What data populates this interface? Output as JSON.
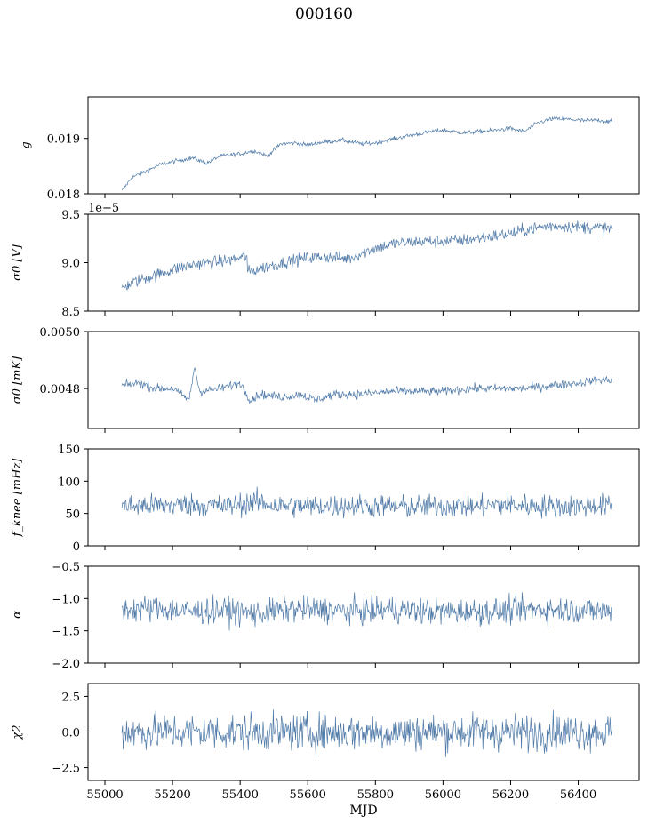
{
  "title": "000160",
  "chart_data": [
    {
      "type": "line",
      "ylabel": "g",
      "ylim": [
        0.018,
        0.01975
      ],
      "yticks": [
        0.018,
        0.019
      ],
      "ytick_labels": [
        "0.018",
        "0.019"
      ],
      "offset_text": "",
      "xlim": [
        54950,
        56580
      ],
      "color": "#4e79a7",
      "noise": 3e-05,
      "points": [
        [
          55050,
          0.01805
        ],
        [
          55080,
          0.0183
        ],
        [
          55120,
          0.0184
        ],
        [
          55160,
          0.01852
        ],
        [
          55200,
          0.01858
        ],
        [
          55260,
          0.01865
        ],
        [
          55300,
          0.01855
        ],
        [
          55340,
          0.01868
        ],
        [
          55400,
          0.01872
        ],
        [
          55440,
          0.01878
        ],
        [
          55480,
          0.01868
        ],
        [
          55520,
          0.0189
        ],
        [
          55560,
          0.01892
        ],
        [
          55600,
          0.01888
        ],
        [
          55640,
          0.01893
        ],
        [
          55700,
          0.01897
        ],
        [
          55760,
          0.0189
        ],
        [
          55800,
          0.01892
        ],
        [
          55860,
          0.019
        ],
        [
          55900,
          0.01905
        ],
        [
          55960,
          0.01912
        ],
        [
          56000,
          0.01915
        ],
        [
          56060,
          0.0191
        ],
        [
          56100,
          0.01912
        ],
        [
          56160,
          0.01915
        ],
        [
          56200,
          0.01918
        ],
        [
          56240,
          0.01912
        ],
        [
          56280,
          0.01928
        ],
        [
          56320,
          0.01935
        ],
        [
          56360,
          0.01935
        ],
        [
          56420,
          0.01932
        ],
        [
          56460,
          0.01933
        ],
        [
          56500,
          0.0193
        ]
      ]
    },
    {
      "type": "line",
      "ylabel": "σ0 [V]",
      "ylim": [
        8.5,
        9.5
      ],
      "yticks": [
        8.5,
        9.0,
        9.5
      ],
      "ytick_labels": [
        "8.5",
        "9.0",
        "9.5"
      ],
      "offset_text": "1e−5",
      "xlim": [
        54950,
        56580
      ],
      "color": "#4e79a7",
      "noise": 0.05,
      "points": [
        [
          55050,
          8.74
        ],
        [
          55100,
          8.82
        ],
        [
          55160,
          8.88
        ],
        [
          55220,
          8.95
        ],
        [
          55280,
          8.99
        ],
        [
          55340,
          9.01
        ],
        [
          55400,
          9.05
        ],
        [
          55420,
          9.07
        ],
        [
          55421,
          8.9
        ],
        [
          55480,
          8.96
        ],
        [
          55540,
          9.01
        ],
        [
          55600,
          9.05
        ],
        [
          55660,
          9.06
        ],
        [
          55720,
          9.04
        ],
        [
          55760,
          9.1
        ],
        [
          55800,
          9.15
        ],
        [
          55860,
          9.2
        ],
        [
          55920,
          9.22
        ],
        [
          56000,
          9.22
        ],
        [
          56080,
          9.24
        ],
        [
          56140,
          9.27
        ],
        [
          56200,
          9.3
        ],
        [
          56260,
          9.35
        ],
        [
          56320,
          9.38
        ],
        [
          56400,
          9.37
        ],
        [
          56460,
          9.36
        ],
        [
          56500,
          9.35
        ]
      ]
    },
    {
      "type": "line",
      "ylabel": "σ0 [mK]",
      "ylim": [
        0.00466,
        0.005
      ],
      "yticks": [
        0.0048,
        0.005
      ],
      "ytick_labels": [
        "0.0048",
        "0.0050"
      ],
      "offset_text": "",
      "xlim": [
        54950,
        56580
      ],
      "color": "#4e79a7",
      "noise": 1.2e-05,
      "points": [
        [
          55050,
          0.00481
        ],
        [
          55100,
          0.00482
        ],
        [
          55150,
          0.0048
        ],
        [
          55200,
          0.0048
        ],
        [
          55250,
          0.00476
        ],
        [
          55265,
          0.00488
        ],
        [
          55280,
          0.00479
        ],
        [
          55340,
          0.0048
        ],
        [
          55400,
          0.00482
        ],
        [
          55430,
          0.00476
        ],
        [
          55460,
          0.00478
        ],
        [
          55520,
          0.00477
        ],
        [
          55580,
          0.00478
        ],
        [
          55620,
          0.00476
        ],
        [
          55680,
          0.00478
        ],
        [
          55760,
          0.00478
        ],
        [
          55840,
          0.00479
        ],
        [
          55920,
          0.00479
        ],
        [
          56000,
          0.00479
        ],
        [
          56080,
          0.0048
        ],
        [
          56160,
          0.0048
        ],
        [
          56240,
          0.0048
        ],
        [
          56320,
          0.00481
        ],
        [
          56400,
          0.00482
        ],
        [
          56460,
          0.00483
        ],
        [
          56500,
          0.00483
        ]
      ]
    },
    {
      "type": "line",
      "ylabel": "f_knee [mHz]",
      "ylim": [
        0,
        150
      ],
      "yticks": [
        0,
        50,
        100,
        150
      ],
      "ytick_labels": [
        "0",
        "50",
        "100",
        "150"
      ],
      "offset_text": "",
      "xlim": [
        54950,
        56580
      ],
      "color": "#4e79a7",
      "noise": 14,
      "points": [
        [
          55050,
          62
        ],
        [
          55150,
          62
        ],
        [
          55260,
          64
        ],
        [
          55360,
          61
        ],
        [
          55440,
          68
        ],
        [
          55520,
          62
        ],
        [
          55600,
          61
        ],
        [
          55700,
          62
        ],
        [
          55800,
          62
        ],
        [
          55900,
          60
        ],
        [
          56000,
          62
        ],
        [
          56100,
          61
        ],
        [
          56180,
          64
        ],
        [
          56260,
          62
        ],
        [
          56360,
          61
        ],
        [
          56440,
          62
        ],
        [
          56500,
          62
        ]
      ]
    },
    {
      "type": "line",
      "ylabel": "α",
      "ylim": [
        -2.0,
        -0.5
      ],
      "yticks": [
        -2.0,
        -1.5,
        -1.0,
        -0.5
      ],
      "ytick_labels": [
        "−2.0",
        "−1.5",
        "−1.0",
        "−0.5"
      ],
      "offset_text": "",
      "xlim": [
        54950,
        56580
      ],
      "color": "#4e79a7",
      "noise": 0.16,
      "points": [
        [
          55050,
          -1.17
        ],
        [
          55150,
          -1.15
        ],
        [
          55250,
          -1.2
        ],
        [
          55350,
          -1.18
        ],
        [
          55450,
          -1.24
        ],
        [
          55550,
          -1.16
        ],
        [
          55650,
          -1.18
        ],
        [
          55750,
          -1.2
        ],
        [
          55850,
          -1.17
        ],
        [
          55950,
          -1.2
        ],
        [
          56050,
          -1.2
        ],
        [
          56150,
          -1.2
        ],
        [
          56250,
          -1.17
        ],
        [
          56350,
          -1.17
        ],
        [
          56450,
          -1.19
        ],
        [
          56500,
          -1.2
        ]
      ]
    },
    {
      "type": "line",
      "ylabel": "χ2",
      "ylim": [
        -3.4,
        3.4
      ],
      "yticks": [
        -2.5,
        0.0,
        2.5
      ],
      "ytick_labels": [
        "−2.5",
        "0.0",
        "2.5"
      ],
      "offset_text": "",
      "xlim": [
        54950,
        56580
      ],
      "color": "#4e79a7",
      "noise": 1.0,
      "xticks": [
        55000,
        55200,
        55400,
        55600,
        55800,
        56000,
        56200,
        56400
      ],
      "xtick_labels": [
        "55000",
        "55200",
        "55400",
        "55600",
        "55800",
        "56000",
        "56200",
        "56400"
      ],
      "xlabel": "MJD",
      "points": [
        [
          55050,
          0.0
        ],
        [
          55300,
          0.0
        ],
        [
          55600,
          0.0
        ],
        [
          55900,
          0.0
        ],
        [
          56200,
          0.0
        ],
        [
          56500,
          0.0
        ]
      ]
    }
  ]
}
